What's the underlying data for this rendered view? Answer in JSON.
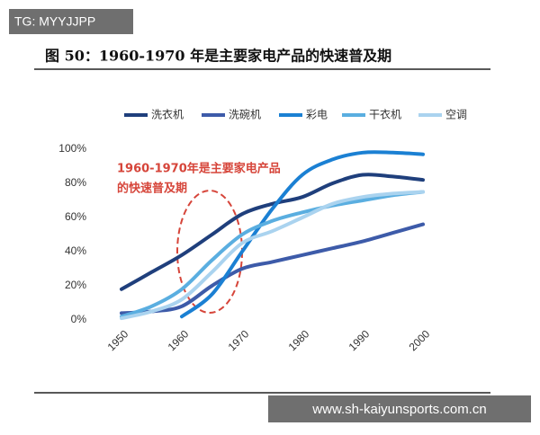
{
  "overlay": {
    "tag": "TG: MYYJJPP",
    "watermark": "www.sh-kaiyunsports.com.cn"
  },
  "chart_data": {
    "type": "line",
    "title": "图 50：1960-1970 年是主要家电产品的快速普及期",
    "annotations": [
      "1960-1970年是主要家电产品",
      "的快速普及期"
    ],
    "x": [
      1950,
      1955,
      1960,
      1965,
      1970,
      1975,
      1980,
      1985,
      1990,
      1995,
      2000
    ],
    "xlim": [
      1950,
      2000
    ],
    "xticks": [
      1950,
      1960,
      1970,
      1980,
      1990,
      2000
    ],
    "ylim": [
      0,
      100
    ],
    "yticks": [
      {
        "value": 0,
        "label": "0%"
      },
      {
        "value": 20,
        "label": "20%"
      },
      {
        "value": 40,
        "label": "40%"
      },
      {
        "value": 60,
        "label": "60%"
      },
      {
        "value": 80,
        "label": "80%"
      },
      {
        "value": 100,
        "label": "100%"
      }
    ],
    "series": [
      {
        "name": "洗衣机",
        "color": "#1f3f7c",
        "values": [
          18,
          28,
          38,
          50,
          62,
          68,
          72,
          80,
          85,
          84,
          82
        ]
      },
      {
        "name": "洗碗机",
        "color": "#3d5ba9",
        "values": [
          4,
          5,
          8,
          20,
          30,
          34,
          38,
          42,
          46,
          51,
          56
        ]
      },
      {
        "name": "彩电",
        "color": "#1b80d3",
        "values": [
          null,
          null,
          2,
          15,
          40,
          65,
          85,
          94,
          98,
          98,
          97
        ]
      },
      {
        "name": "干衣机",
        "color": "#5aaee0",
        "values": [
          2,
          8,
          18,
          35,
          50,
          58,
          63,
          67,
          70,
          73,
          75
        ]
      },
      {
        "name": "空调",
        "color": "#aad3ef",
        "values": [
          1,
          5,
          12,
          28,
          45,
          52,
          60,
          68,
          72,
          74,
          75
        ]
      }
    ]
  }
}
